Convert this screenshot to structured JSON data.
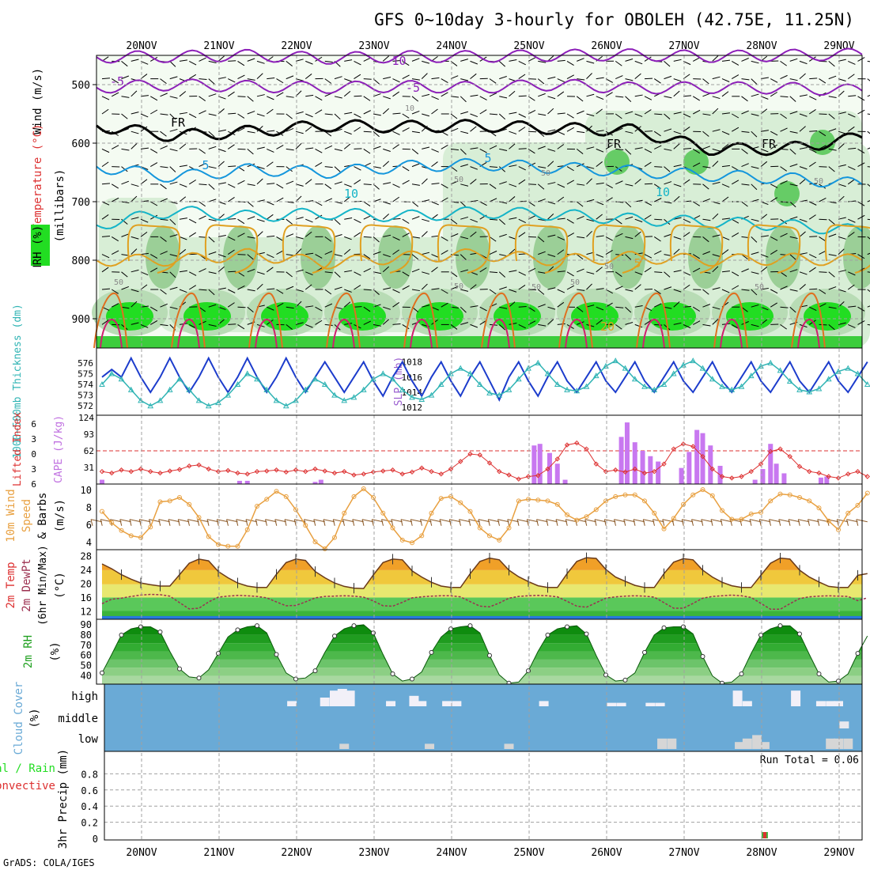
{
  "title": "GFS 0~10day 3-hourly for OBOLEH (42.75E, 11.25N)",
  "footer": "GrADS: COLA/IGES",
  "dates": [
    "20NOV",
    "21NOV",
    "22NOV",
    "23NOV",
    "24NOV",
    "25NOV",
    "26NOV",
    "27NOV",
    "28NOV",
    "29NOV"
  ],
  "colors": {
    "grid": "#a0a0a0",
    "rh_green": "#22dd22",
    "temp_purple": "#8c1fb8",
    "temp_blue": "#1496dc",
    "temp_cyan": "#14b4c8",
    "temp_orange": "#e0a020",
    "slp_blue": "#1c3ccc",
    "thickness_cyan": "#30b4b4",
    "cape_purple": "#c878f0",
    "li_red": "#dd3030",
    "wind_orange": "#e8a040",
    "barb_brown": "#8c5a28",
    "cloud_bg": "#6aaad6",
    "rh2m_green": "#1fa01f"
  },
  "chart_data": [
    {
      "type": "contour",
      "name": "upper-air",
      "ylabels": {
        "wind": "Wind (m/s)",
        "temperature": "Temperature (°C)",
        "rh": "RH (%)",
        "units": "(millibars)"
      },
      "ylim": [
        950,
        450
      ],
      "yticks": [
        500,
        600,
        700,
        800,
        900
      ],
      "contour_labels": [
        "-10",
        "-5",
        "-5",
        "FR",
        "FR",
        "FR",
        "5",
        "5",
        "10",
        "10",
        "5",
        "50",
        "50",
        "50",
        "50",
        "50",
        "50",
        "50",
        "50",
        "50",
        "10",
        "20"
      ],
      "isotherms": [
        {
          "label": "-10",
          "color": "purple",
          "mb": [
            453,
            452,
            450,
            455,
            452,
            452,
            450,
            449,
            452,
            450,
            448
          ]
        },
        {
          "label": "-5",
          "color": "purple",
          "mb": [
            505,
            500,
            503,
            505,
            503,
            505,
            500,
            506,
            505,
            506,
            510
          ]
        },
        {
          "label": "FR",
          "color": "black",
          "mb": [
            570,
            588,
            580,
            570,
            572,
            570,
            575,
            578,
            610,
            610,
            590
          ]
        },
        {
          "label": "5",
          "color": "blue",
          "mb": [
            640,
            658,
            645,
            650,
            640,
            636,
            642,
            648,
            655,
            660,
            670
          ]
        },
        {
          "label": "10",
          "color": "cyan",
          "mb": [
            740,
            716,
            725,
            720,
            725,
            718,
            722,
            730,
            735,
            740,
            750
          ]
        },
        {
          "label": "5",
          "color": "orange",
          "mb": [
            800,
            800,
            790,
            805,
            795,
            790,
            800,
            795,
            800,
            798,
            800
          ]
        }
      ]
    },
    {
      "type": "line",
      "name": "slp-thickness",
      "ylabel_left": "1000~500mb Thickness (dm)",
      "ylabel_right": "SLP (mb)",
      "ylim_left": [
        571.5,
        576.8
      ],
      "ylim_right": [
        1011.5,
        1019
      ],
      "yticks_left": [
        572,
        573,
        574,
        575,
        576
      ],
      "yticks_right": [
        1012,
        1014,
        1016,
        1018
      ],
      "series": [
        {
          "name": "SLP",
          "axis": "right",
          "values": [
            1016,
            1017,
            1016,
            1018.5,
            1016,
            1014,
            1016,
            1018.5,
            1016,
            1014,
            1016,
            1018.5,
            1016,
            1014,
            1016,
            1018.5,
            1016,
            1014,
            1016,
            1018.5,
            1016,
            1014,
            1016,
            1018,
            1016,
            1014,
            1016,
            1018,
            1015.5,
            1013.5,
            1016,
            1018,
            1015.5,
            1013.5,
            1016,
            1018,
            1015.5,
            1013.5,
            1016,
            1018,
            1015.5,
            1013,
            1016,
            1018,
            1015.5,
            1013.5,
            1016,
            1018,
            1015.5,
            1014,
            1016,
            1018,
            1015.5,
            1014,
            1016,
            1018,
            1015.5,
            1014,
            1016,
            1018,
            1015.5,
            1014,
            1016,
            1018,
            1015.5,
            1014,
            1016,
            1018,
            1015.5,
            1014,
            1016,
            1018,
            1015.5,
            1014,
            1016,
            1018,
            1015.5,
            1014,
            1016,
            1018
          ]
        },
        {
          "name": "Thickness",
          "axis": "left",
          "values": [
            574,
            575,
            574.5,
            573.5,
            572.5,
            572,
            572.5,
            573.5,
            574.5,
            573.5,
            572.5,
            572,
            572.3,
            573,
            574,
            575,
            574.5,
            573.5,
            572.5,
            572,
            572.5,
            573.5,
            574.5,
            574,
            573,
            572.5,
            572.8,
            573.5,
            574.5,
            575,
            574.5,
            573.5,
            572.8,
            572.6,
            573,
            574,
            575,
            575.5,
            575,
            574,
            573.2,
            573,
            573.5,
            574.5,
            575.5,
            576,
            575,
            574,
            573.5,
            573.4,
            573.8,
            574.8,
            575.7,
            576.2,
            575.5,
            574.5,
            573.8,
            573.5,
            574,
            575,
            575.8,
            576.2,
            575.5,
            574.5,
            573.8,
            573.5,
            573.8,
            574.8,
            575.7,
            576,
            575.3,
            574.3,
            573.5,
            573.3,
            573.6,
            574.5,
            575.2,
            575.5,
            575,
            574
          ]
        }
      ]
    },
    {
      "type": "bar",
      "name": "cape-li",
      "ylabel_left": "Lifted Index",
      "ylabel_right": "CAPE (J/kg)",
      "yticks_left": [
        -6,
        -3,
        0,
        3,
        6
      ],
      "ylim_cape": [
        0,
        124
      ],
      "yticks_cape": [
        31,
        62,
        93,
        124
      ],
      "cape_values": [
        8,
        0,
        0,
        0,
        0,
        0,
        0,
        0,
        0,
        0,
        0,
        0,
        0,
        0,
        0,
        0,
        0,
        0,
        6,
        6,
        0,
        0,
        0,
        0,
        0,
        0,
        0,
        0,
        0,
        0,
        0,
        0,
        0,
        0,
        0,
        0,
        0,
        0,
        0,
        0,
        0,
        0,
        0,
        0,
        0,
        0,
        0,
        0,
        0,
        0,
        0,
        0,
        0,
        0,
        0,
        0,
        0,
        0,
        0,
        0,
        0,
        0,
        0,
        0,
        0,
        0,
        0,
        0,
        0,
        0,
        0,
        0,
        0,
        0,
        0,
        0,
        0,
        0,
        0,
        0,
        0,
        0,
        0,
        0,
        0,
        0,
        0,
        0,
        0,
        0,
        0,
        0,
        0,
        0,
        0,
        0,
        0,
        0,
        0,
        0,
        0,
        0,
        0,
        0,
        0,
        0
      ],
      "cape_bars": [
        {
          "x": 0.0,
          "v": 8
        },
        {
          "x": 7.1,
          "v": 6
        },
        {
          "x": 7.5,
          "v": 6
        },
        {
          "x": 11.0,
          "v": 4
        },
        {
          "x": 11.3,
          "v": 8
        },
        {
          "x": 22.3,
          "v": 72
        },
        {
          "x": 22.6,
          "v": 75
        },
        {
          "x": 23.1,
          "v": 58
        },
        {
          "x": 23.5,
          "v": 38
        },
        {
          "x": 23.9,
          "v": 8
        },
        {
          "x": 26.8,
          "v": 88
        },
        {
          "x": 27.1,
          "v": 115
        },
        {
          "x": 27.5,
          "v": 78
        },
        {
          "x": 27.9,
          "v": 62
        },
        {
          "x": 28.3,
          "v": 52
        },
        {
          "x": 28.7,
          "v": 42
        },
        {
          "x": 29.9,
          "v": 30
        },
        {
          "x": 30.3,
          "v": 60
        },
        {
          "x": 30.7,
          "v": 101
        },
        {
          "x": 31.0,
          "v": 95
        },
        {
          "x": 31.4,
          "v": 72
        },
        {
          "x": 31.9,
          "v": 34
        },
        {
          "x": 33.7,
          "v": 8
        },
        {
          "x": 34.1,
          "v": 28
        },
        {
          "x": 34.5,
          "v": 75
        },
        {
          "x": 34.8,
          "v": 38
        },
        {
          "x": 35.2,
          "v": 20
        },
        {
          "x": 37.1,
          "v": 12
        },
        {
          "x": 37.4,
          "v": 14
        }
      ],
      "li_values": [
        3.5,
        3.8,
        3.2,
        3.5,
        3.0,
        3.5,
        3.8,
        3.4,
        3.1,
        2.4,
        2.2,
        3.0,
        3.5,
        3.3,
        3.8,
        4.0,
        3.5,
        3.4,
        3.2,
        3.6,
        3.2,
        3.5,
        3.0,
        3.4,
        3.8,
        3.5,
        4.2,
        4.0,
        3.6,
        3.4,
        3.2,
        4.0,
        3.6,
        2.8,
        3.5,
        4.0,
        3.0,
        1.5,
        0.0,
        0.2,
        1.8,
        3.5,
        4.2,
        5.0,
        4.5,
        4.3,
        3.0,
        1.0,
        -1.8,
        -2.2,
        -1.0,
        2.0,
        3.5,
        3.2,
        3.6,
        3.0,
        3.8,
        3.5,
        2.0,
        -1.0,
        -2.0,
        -1.5,
        0.5,
        3.0,
        4.5,
        4.8,
        4.5,
        3.5,
        2.0,
        -0.5,
        -1.0,
        0.5,
        2.5,
        3.5,
        3.8,
        4.5,
        4.8,
        4.0,
        3.5,
        4.5
      ]
    },
    {
      "type": "line",
      "name": "10m-wind",
      "ylabel": "10m Wind Speed & Barbs (m/s)",
      "ylim": [
        3.2,
        10.2
      ],
      "yticks": [
        4,
        6,
        8,
        10
      ],
      "values": [
        7.6,
        6.3,
        5.4,
        4.8,
        4.6,
        5.8,
        8.7,
        8.8,
        9.2,
        8.4,
        6.9,
        4.7,
        3.8,
        3.6,
        3.6,
        5.5,
        8.2,
        9.0,
        9.9,
        9.3,
        7.8,
        6.0,
        4.1,
        3.3,
        4.6,
        7.4,
        9.3,
        10.2,
        9.2,
        7.4,
        5.7,
        4.3,
        4.0,
        4.8,
        7.4,
        9.1,
        9.3,
        8.6,
        7.6,
        5.7,
        4.8,
        4.3,
        5.7,
        8.8,
        9.0,
        8.9,
        8.8,
        8.4,
        7.2,
        6.6,
        7.0,
        7.8,
        8.8,
        9.3,
        9.5,
        9.5,
        8.8,
        7.4,
        5.6,
        6.8,
        8.4,
        9.5,
        10.1,
        9.4,
        7.7,
        6.7,
        6.7,
        7.3,
        7.5,
        8.8,
        9.6,
        9.5,
        9.2,
        8.8,
        8.0,
        6.5,
        5.5,
        7.4,
        8.3,
        9.7,
        10.0,
        9.4,
        8.8,
        7.5,
        6.4,
        5.6,
        4.6,
        8.8
      ]
    },
    {
      "type": "area",
      "name": "2m-temp",
      "ylabel": "2m Temp 2m DewPt (6hr Min/Max) (°C)",
      "ylim": [
        9.8,
        29
      ],
      "yticks": [
        12,
        16,
        20,
        24,
        28
      ],
      "temp": [
        25.8,
        24.4,
        22.7,
        21.4,
        20.3,
        19.8,
        19.4,
        19.4,
        22.7,
        26.0,
        27.2,
        26.7,
        23.6,
        21.8,
        20.3,
        19.4,
        19.0,
        19.0,
        22.8,
        26.2,
        27.2,
        26.8,
        23.6,
        21.8,
        20.3,
        19.3,
        18.8,
        18.7,
        22.6,
        26.2,
        27.2,
        27.0,
        23.8,
        22.0,
        20.5,
        19.4,
        19.0,
        19.0,
        23.0,
        26.5,
        27.5,
        27.0,
        24.0,
        22.1,
        20.7,
        19.5,
        19.0,
        19.0,
        23.0,
        26.5,
        27.6,
        27.4,
        24.2,
        22.0,
        20.8,
        19.6,
        19.0,
        19.0,
        23.0,
        26.3,
        27.3,
        27.0,
        24.0,
        22.0,
        20.5,
        19.5,
        19.0,
        19.0,
        22.5,
        26.0,
        27.5,
        27.2,
        24.0,
        22.0,
        20.6,
        19.3,
        19.0,
        19.0,
        22.5,
        23.0
      ],
      "dewpt": [
        14.3,
        15.6,
        15.9,
        16.4,
        16.8,
        17.0,
        16.9,
        16.5,
        14.6,
        12.8,
        13.0,
        14.8,
        16.2,
        16.5,
        16.7,
        16.6,
        16.4,
        16.0,
        14.8,
        13.7,
        13.8,
        14.8,
        16.0,
        16.4,
        16.5,
        16.6,
        16.5,
        16.2,
        15.1,
        13.7,
        13.6,
        14.7,
        16.0,
        16.3,
        16.5,
        16.6,
        16.6,
        16.3,
        14.9,
        13.6,
        13.4,
        14.5,
        15.9,
        16.4,
        16.6,
        16.7,
        16.6,
        16.3,
        15.0,
        13.6,
        13.3,
        14.6,
        15.9,
        16.3,
        16.5,
        16.6,
        16.5,
        16.2,
        14.6,
        13.0,
        13.0,
        14.4,
        15.9,
        16.4,
        16.6,
        16.8,
        16.6,
        16.1,
        14.4,
        12.7,
        12.7,
        14.3,
        15.8,
        16.3,
        16.5,
        16.6,
        16.5,
        16.4,
        15.2,
        16.0
      ],
      "band_edges": [
        10.5,
        12.2,
        16.1,
        19.9,
        24.0,
        28.0
      ]
    },
    {
      "type": "area",
      "name": "2m-rh",
      "ylabel": "2m RH (%)",
      "ylim": [
        32,
        93
      ],
      "yticks": [
        40,
        50,
        60,
        70,
        80,
        90
      ],
      "values": [
        43,
        61,
        80,
        86,
        88,
        88,
        83,
        64,
        47,
        39,
        38,
        46,
        62,
        78,
        85,
        88,
        89,
        82,
        61,
        43,
        37,
        38,
        45,
        63,
        79,
        86,
        89,
        90,
        82,
        61,
        42,
        35,
        37,
        44,
        63,
        78,
        86,
        88,
        89,
        82,
        60,
        41,
        33,
        34,
        45,
        64,
        80,
        86,
        88,
        89,
        81,
        60,
        41,
        35,
        36,
        43,
        63,
        80,
        87,
        88,
        88,
        81,
        59,
        40,
        33,
        34,
        42,
        62,
        80,
        86,
        89,
        89,
        81,
        61,
        42,
        34,
        35,
        42,
        62,
        79
      ]
    },
    {
      "type": "heatmap",
      "name": "cloud-cover",
      "ylabel": "Cloud Cover (%)",
      "levels": [
        "high",
        "middle",
        "low"
      ],
      "high_cells": [
        {
          "x": 9.8,
          "v": 0.3
        },
        {
          "x": 11.5,
          "v": 0.5
        },
        {
          "x": 12.0,
          "v": 0.9
        },
        {
          "x": 12.4,
          "v": 1.0
        },
        {
          "x": 12.8,
          "v": 0.9
        },
        {
          "x": 14.9,
          "v": 0.3
        },
        {
          "x": 16.1,
          "v": 0.6
        },
        {
          "x": 16.5,
          "v": 0.3
        },
        {
          "x": 17.8,
          "v": 0.3
        },
        {
          "x": 18.3,
          "v": 0.3
        },
        {
          "x": 22.8,
          "v": 0.3
        },
        {
          "x": 26.3,
          "v": 0.2
        },
        {
          "x": 26.8,
          "v": 0.2
        },
        {
          "x": 28.3,
          "v": 0.2
        },
        {
          "x": 28.8,
          "v": 0.2
        },
        {
          "x": 32.8,
          "v": 0.9
        },
        {
          "x": 33.3,
          "v": 0.3
        },
        {
          "x": 35.8,
          "v": 0.9
        },
        {
          "x": 37.1,
          "v": 0.3
        },
        {
          "x": 37.6,
          "v": 0.3
        },
        {
          "x": 38.0,
          "v": 0.3
        },
        {
          "x": 40.5,
          "v": 0.3
        },
        {
          "x": 41.0,
          "v": 0.3
        },
        {
          "x": 42.0,
          "v": 0.3
        }
      ],
      "middle_cells": [
        {
          "x": 38.3,
          "v": 0.4
        }
      ],
      "low_cells": [
        {
          "x": 12.5,
          "v": 0.3
        },
        {
          "x": 16.9,
          "v": 0.3
        },
        {
          "x": 21.0,
          "v": 0.3
        },
        {
          "x": 28.9,
          "v": 0.6
        },
        {
          "x": 29.4,
          "v": 0.6
        },
        {
          "x": 32.9,
          "v": 0.4
        },
        {
          "x": 33.3,
          "v": 0.6
        },
        {
          "x": 33.8,
          "v": 0.8
        },
        {
          "x": 34.2,
          "v": 0.4
        },
        {
          "x": 37.6,
          "v": 0.6
        },
        {
          "x": 38.0,
          "v": 0.6
        },
        {
          "x": 38.5,
          "v": 0.6
        },
        {
          "x": 41.8,
          "v": 0.6
        },
        {
          "x": 42.3,
          "v": 0.6
        }
      ]
    },
    {
      "type": "bar",
      "name": "precip",
      "ylabel": "3hr Precip (mm)",
      "legend": [
        "Total / Rain",
        "Convective"
      ],
      "run_total_label": "Run Total = 0.06",
      "ylim": [
        0,
        1
      ],
      "yticks": [
        0,
        0.2,
        0.4,
        0.6,
        0.8
      ],
      "bars": [
        {
          "x": 34.2,
          "total": 0.02,
          "convective": 0.02
        }
      ]
    }
  ]
}
